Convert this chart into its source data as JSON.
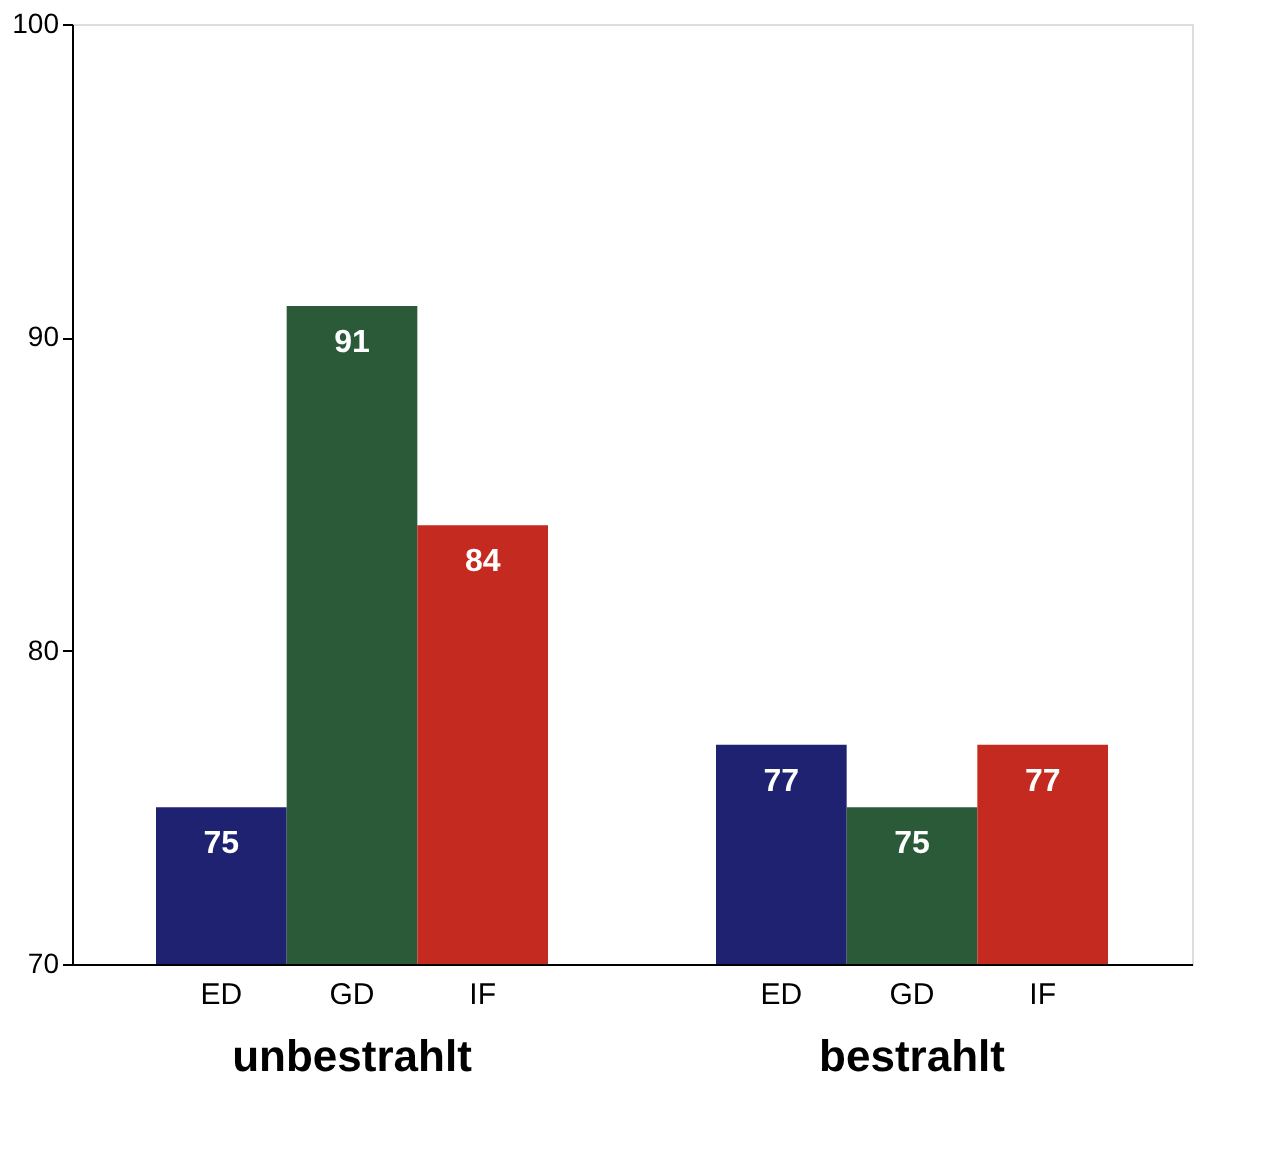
{
  "chart_data": {
    "type": "bar",
    "categories": [
      "unbestrahlt",
      "bestrahlt"
    ],
    "series": [
      {
        "name": "ED",
        "color": "#1e2270",
        "values": [
          75,
          77
        ]
      },
      {
        "name": "GD",
        "color": "#2b5a38",
        "values": [
          91,
          75
        ]
      },
      {
        "name": "IF",
        "color": "#c42a1f",
        "values": [
          84,
          77
        ]
      }
    ],
    "ylim": [
      70,
      100
    ],
    "yticks": [
      70,
      80,
      90,
      100
    ],
    "data_labels": true,
    "grid": false,
    "legend": false
  }
}
